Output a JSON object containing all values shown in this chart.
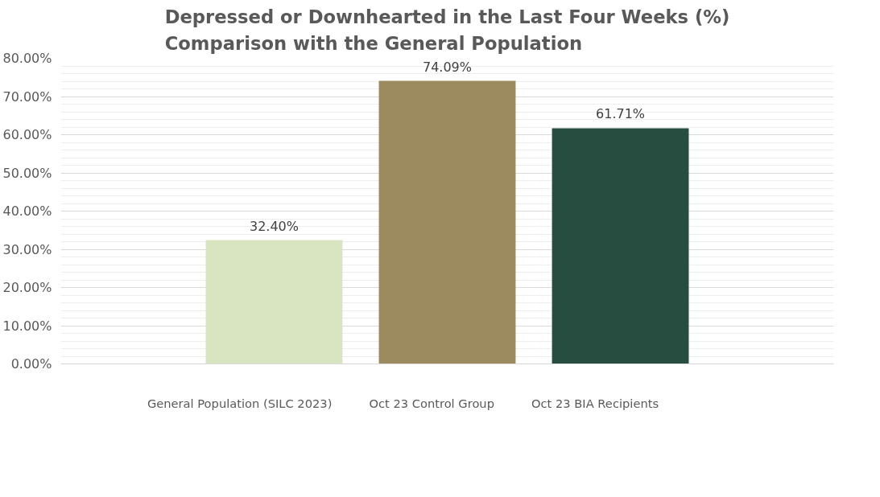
{
  "chart_data": {
    "type": "bar",
    "title": "Depressed or Downhearted in the Last Four Weeks (%)\nComparison with the General Population",
    "categories": [
      null
    ],
    "series": [
      {
        "name": "General Population (SILC 2023)",
        "color": "#d9e4c0",
        "values": [
          32.4
        ],
        "value_labels": [
          "32.40%"
        ]
      },
      {
        "name": "Oct 23 Control Group",
        "color": "#9c8b5e",
        "values": [
          74.09
        ],
        "value_labels": [
          "74.09%"
        ]
      },
      {
        "name": "Oct 23 BIA Recipients",
        "color": "#264d40",
        "values": [
          61.71
        ],
        "value_labels": [
          "61.71%"
        ]
      }
    ],
    "ylim": [
      0,
      80
    ],
    "yticks": [
      {
        "value": 0,
        "label": "0.00%"
      },
      {
        "value": 10,
        "label": "10.00%"
      },
      {
        "value": 20,
        "label": "20.00%"
      },
      {
        "value": 30,
        "label": "30.00%"
      },
      {
        "value": 40,
        "label": "40.00%"
      },
      {
        "value": 50,
        "label": "50.00%"
      },
      {
        "value": 60,
        "label": "60.00%"
      },
      {
        "value": 70,
        "label": "70.00%"
      },
      {
        "value": 80,
        "label": "80.00%"
      }
    ],
    "grid": "y",
    "legend": "bottom"
  }
}
